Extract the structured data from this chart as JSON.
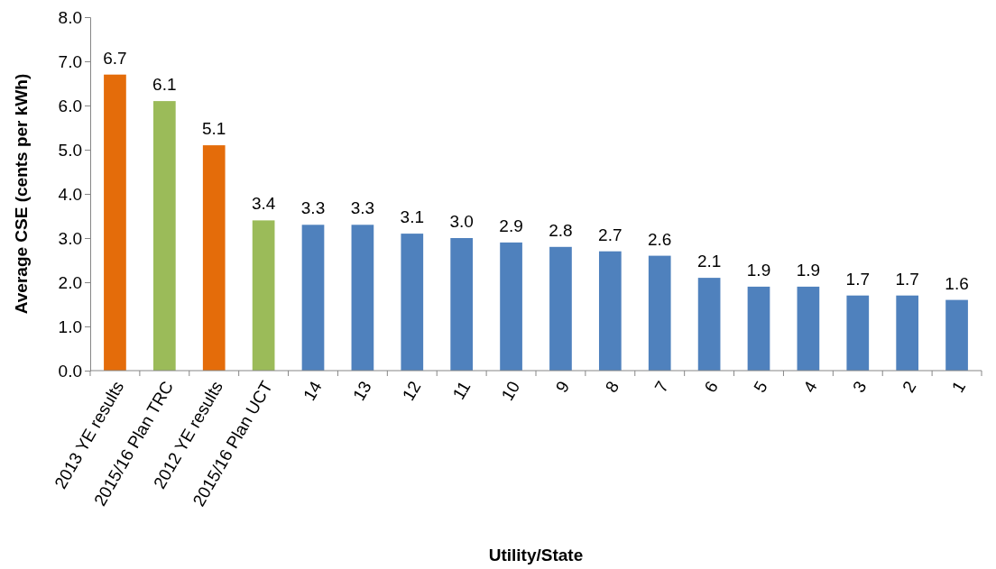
{
  "chart_data": {
    "type": "bar",
    "xlabel": "Utility/State",
    "ylabel": "Average CSE (cents per kWh)",
    "categories": [
      "2013 YE results",
      "2015/16 Plan TRC",
      "2012 YE results",
      "2015/16 Plan UCT",
      "14",
      "13",
      "12",
      "11",
      "10",
      "9",
      "8",
      "7",
      "6",
      "5",
      "4",
      "3",
      "2",
      "1"
    ],
    "values": [
      6.7,
      6.1,
      5.1,
      3.4,
      3.3,
      3.3,
      3.1,
      3.0,
      2.9,
      2.8,
      2.7,
      2.6,
      2.1,
      1.9,
      1.9,
      1.7,
      1.7,
      1.6
    ],
    "value_labels": [
      "6.7",
      "6.1",
      "5.1",
      "3.4",
      "3.3",
      "3.3",
      "3.1",
      "3.0",
      "2.9",
      "2.8",
      "2.7",
      "2.6",
      "2.1",
      "1.9",
      "1.9",
      "1.7",
      "1.7",
      "1.6"
    ],
    "colors": [
      "#e46c0a",
      "#9bbb59",
      "#e46c0a",
      "#9bbb59",
      "#4f81bd",
      "#4f81bd",
      "#4f81bd",
      "#4f81bd",
      "#4f81bd",
      "#4f81bd",
      "#4f81bd",
      "#4f81bd",
      "#4f81bd",
      "#4f81bd",
      "#4f81bd",
      "#4f81bd",
      "#4f81bd",
      "#4f81bd"
    ],
    "ylim": [
      0,
      8
    ],
    "yticks": [
      {
        "value": 0,
        "label": "0.0"
      },
      {
        "value": 1,
        "label": "1.0"
      },
      {
        "value": 2,
        "label": "2.0"
      },
      {
        "value": 3,
        "label": "3.0"
      },
      {
        "value": 4,
        "label": "4.0"
      },
      {
        "value": 5,
        "label": "5.0"
      },
      {
        "value": 6,
        "label": "6.0"
      },
      {
        "value": 7,
        "label": "7.0"
      },
      {
        "value": 8,
        "label": "8.0"
      }
    ],
    "grid": false
  }
}
